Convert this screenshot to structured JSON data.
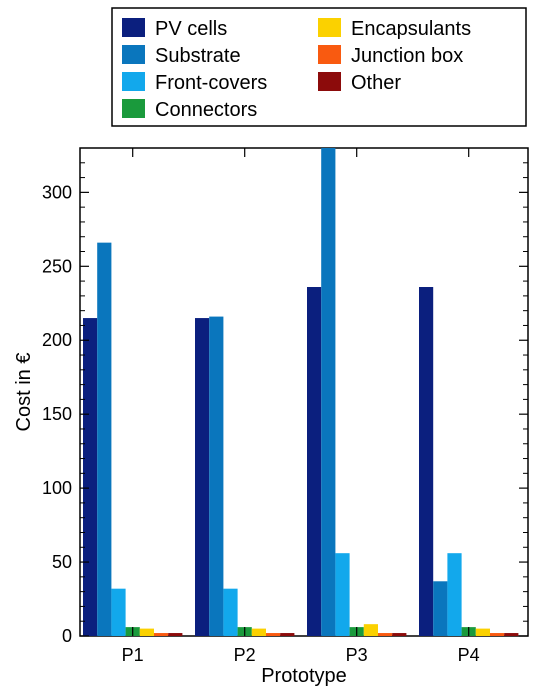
{
  "chart_data": {
    "type": "bar",
    "title": "",
    "xlabel": "Prototype",
    "ylabel": "Cost in €",
    "categories": [
      "P1",
      "P2",
      "P3",
      "P4"
    ],
    "ylim": [
      0,
      330
    ],
    "yticks": [
      0,
      50,
      100,
      150,
      200,
      250,
      300
    ],
    "grid": false,
    "legend_position": "top",
    "series": [
      {
        "name": "PV cells",
        "color": "#0b1f7e",
        "values": [
          215,
          215,
          236,
          236
        ]
      },
      {
        "name": "Substrate",
        "color": "#0a76bd",
        "values": [
          266,
          216,
          330,
          37
        ]
      },
      {
        "name": "Front-covers",
        "color": "#12a8ec",
        "values": [
          32,
          32,
          56,
          56
        ]
      },
      {
        "name": "Connectors",
        "color": "#1a9a3c",
        "values": [
          6,
          6,
          6,
          6
        ]
      },
      {
        "name": "Encapsulants",
        "color": "#fbd100",
        "values": [
          5,
          5,
          8,
          5
        ]
      },
      {
        "name": "Junction box",
        "color": "#f95a10",
        "values": [
          2,
          2,
          2,
          2
        ]
      },
      {
        "name": "Other",
        "color": "#8c0b0b",
        "values": [
          2,
          2,
          2,
          2
        ]
      }
    ]
  }
}
